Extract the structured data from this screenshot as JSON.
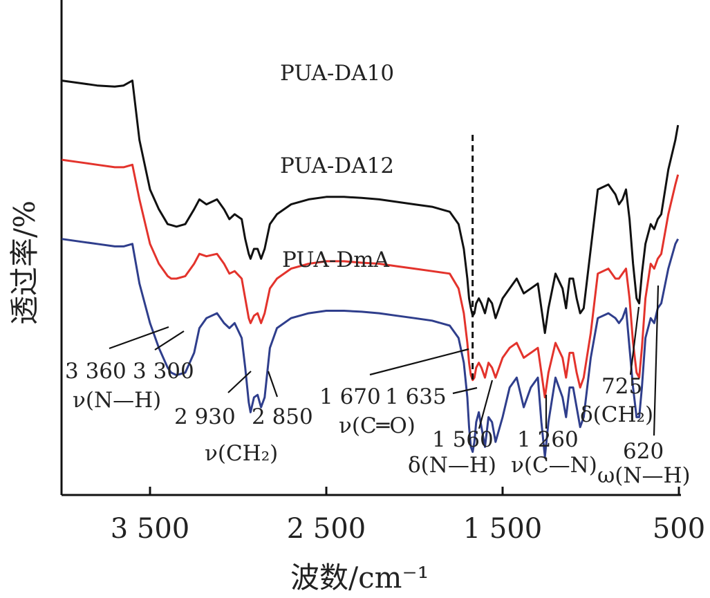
{
  "chart_data": {
    "type": "line",
    "xlabel": "波数/cm⁻¹",
    "ylabel": "透过率/%",
    "xlim": [
      4000,
      500
    ],
    "x_reversed": true,
    "xticks": [
      3500,
      2500,
      1500,
      500
    ],
    "xtick_labels": [
      "3 500",
      "2 500",
      "1 500",
      "500"
    ],
    "dashed_marker_x": 1670,
    "colors": {
      "PUA-DA10": "#111111",
      "PUA-DA12": "#e3332c",
      "PUA-DmA": "#2f3e8c"
    },
    "series": [
      {
        "name": "PUA-DA10",
        "color": "#111111",
        "x": [
          4000,
          3900,
          3800,
          3700,
          3650,
          3600,
          3560,
          3500,
          3450,
          3400,
          3380,
          3350,
          3300,
          3250,
          3220,
          3180,
          3120,
          3080,
          3050,
          3020,
          2980,
          2960,
          2940,
          2930,
          2910,
          2890,
          2870,
          2850,
          2820,
          2780,
          2700,
          2600,
          2500,
          2400,
          2300,
          2200,
          2100,
          2000,
          1900,
          1800,
          1750,
          1720,
          1700,
          1690,
          1680,
          1670,
          1660,
          1650,
          1635,
          1620,
          1600,
          1580,
          1560,
          1540,
          1500,
          1460,
          1420,
          1380,
          1340,
          1300,
          1280,
          1260,
          1240,
          1200,
          1160,
          1140,
          1120,
          1100,
          1080,
          1060,
          1040,
          1000,
          960,
          900,
          860,
          840,
          820,
          800,
          780,
          760,
          740,
          725,
          710,
          690,
          660,
          640,
          620,
          600,
          560,
          520,
          505
        ],
        "y": [
          84,
          83.5,
          83,
          82.8,
          83,
          84,
          72,
          62,
          58,
          55,
          54.8,
          54.5,
          55,
          58,
          60,
          59,
          60,
          58,
          56,
          57,
          56,
          52,
          49,
          48,
          50,
          50,
          48,
          50,
          55,
          57,
          59,
          60,
          60.5,
          60.5,
          60.3,
          60,
          59.5,
          59,
          58.5,
          57.5,
          55,
          50,
          44,
          40,
          38,
          36.5,
          37,
          39,
          40,
          39,
          37,
          40,
          39,
          36,
          40,
          42,
          44,
          41,
          42,
          43,
          38,
          33,
          38,
          45,
          42,
          38,
          44,
          44,
          40,
          37,
          38,
          50,
          62,
          63,
          61,
          59,
          60,
          62,
          56,
          47,
          40,
          39,
          45,
          51,
          55,
          54,
          56,
          57,
          66,
          72,
          75
        ]
      },
      {
        "name": "PUA-DA12",
        "color": "#e3332c",
        "x": [
          4000,
          3900,
          3800,
          3700,
          3650,
          3600,
          3560,
          3500,
          3450,
          3400,
          3380,
          3350,
          3300,
          3250,
          3220,
          3180,
          3120,
          3080,
          3050,
          3020,
          2980,
          2960,
          2940,
          2930,
          2910,
          2890,
          2870,
          2850,
          2820,
          2780,
          2700,
          2600,
          2500,
          2400,
          2300,
          2200,
          2100,
          2000,
          1900,
          1800,
          1750,
          1720,
          1700,
          1690,
          1680,
          1670,
          1660,
          1650,
          1635,
          1620,
          1600,
          1580,
          1560,
          1540,
          1500,
          1460,
          1420,
          1380,
          1340,
          1300,
          1280,
          1260,
          1240,
          1200,
          1160,
          1140,
          1120,
          1100,
          1080,
          1060,
          1040,
          1000,
          960,
          900,
          860,
          840,
          820,
          800,
          780,
          760,
          740,
          725,
          710,
          690,
          660,
          640,
          620,
          600,
          560,
          520,
          505
        ],
        "y": [
          68,
          67.5,
          67,
          66.5,
          66.5,
          67,
          60,
          51,
          47,
          44.5,
          44,
          44,
          44.5,
          47,
          49,
          48.5,
          49,
          47,
          45,
          45.5,
          44,
          40,
          36,
          35,
          36.5,
          37,
          35,
          37,
          42,
          44,
          46,
          47,
          47.5,
          47.5,
          47.2,
          47,
          46.5,
          46,
          45.5,
          45,
          42,
          37,
          31,
          27,
          24.5,
          23.5,
          24,
          26,
          27,
          26,
          24,
          27,
          26,
          24,
          28,
          30,
          31,
          28,
          29,
          30,
          25,
          20,
          25,
          31,
          28,
          24,
          29,
          29,
          25,
          22,
          24,
          33,
          45,
          46,
          44,
          44,
          45,
          46,
          40,
          31,
          25,
          24,
          30,
          40,
          47,
          46,
          48,
          49,
          57,
          63,
          65
        ]
      },
      {
        "name": "PUA-DmA",
        "color": "#2f3e8c",
        "x": [
          4000,
          3900,
          3800,
          3700,
          3650,
          3600,
          3560,
          3500,
          3450,
          3400,
          3380,
          3350,
          3300,
          3250,
          3220,
          3180,
          3120,
          3080,
          3050,
          3020,
          2980,
          2960,
          2940,
          2930,
          2910,
          2890,
          2870,
          2850,
          2820,
          2780,
          2700,
          2600,
          2500,
          2400,
          2300,
          2200,
          2100,
          2000,
          1900,
          1800,
          1750,
          1720,
          1700,
          1690,
          1680,
          1670,
          1660,
          1650,
          1635,
          1620,
          1600,
          1580,
          1560,
          1540,
          1500,
          1460,
          1420,
          1380,
          1340,
          1300,
          1280,
          1260,
          1240,
          1200,
          1160,
          1140,
          1120,
          1100,
          1080,
          1060,
          1040,
          1000,
          960,
          900,
          860,
          840,
          820,
          800,
          780,
          760,
          740,
          725,
          710,
          690,
          660,
          640,
          620,
          600,
          560,
          520,
          505
        ],
        "y": [
          52,
          51.5,
          51,
          50.5,
          50.5,
          51,
          43,
          35,
          30,
          26,
          25,
          24.5,
          25,
          29,
          34,
          36,
          37,
          35,
          34,
          35,
          32,
          26,
          19,
          17,
          20,
          20.5,
          18,
          20,
          30,
          34,
          36,
          37,
          37.5,
          37.5,
          37.3,
          37,
          36.5,
          36,
          35.5,
          34.5,
          32,
          27,
          20,
          14,
          10,
          9,
          11,
          15,
          17,
          14,
          10,
          16,
          15,
          11,
          16,
          22,
          24,
          18,
          22,
          24,
          15,
          8,
          15,
          24,
          20,
          16,
          22,
          22,
          18,
          14,
          16,
          28,
          36,
          37,
          36,
          35,
          36,
          38,
          30,
          22,
          16,
          16,
          22,
          32,
          36,
          35,
          38,
          39,
          46,
          51,
          52
        ]
      }
    ],
    "series_labels": [
      "PUA-DA10",
      "PUA-DA12",
      "PUA-DmA"
    ],
    "annotations": [
      {
        "text": "3 360",
        "x": 3360
      },
      {
        "text": "3 300",
        "x": 3300
      },
      {
        "text": "ν(N—H)"
      },
      {
        "text": "2 930",
        "x": 2930
      },
      {
        "text": "2 850",
        "x": 2850
      },
      {
        "text": "ν(CH₂)"
      },
      {
        "text": "1 670",
        "x": 1670
      },
      {
        "text": "1 635",
        "x": 1635
      },
      {
        "text": "ν(C═O)"
      },
      {
        "text": "1 560",
        "x": 1560
      },
      {
        "text": "δ(N—H)"
      },
      {
        "text": "1 260",
        "x": 1260
      },
      {
        "text": "ν(C—N)"
      },
      {
        "text": "725",
        "x": 725
      },
      {
        "text": "δ(CH₂)"
      },
      {
        "text": "620",
        "x": 620
      },
      {
        "text": "ω(N—H)"
      }
    ]
  }
}
